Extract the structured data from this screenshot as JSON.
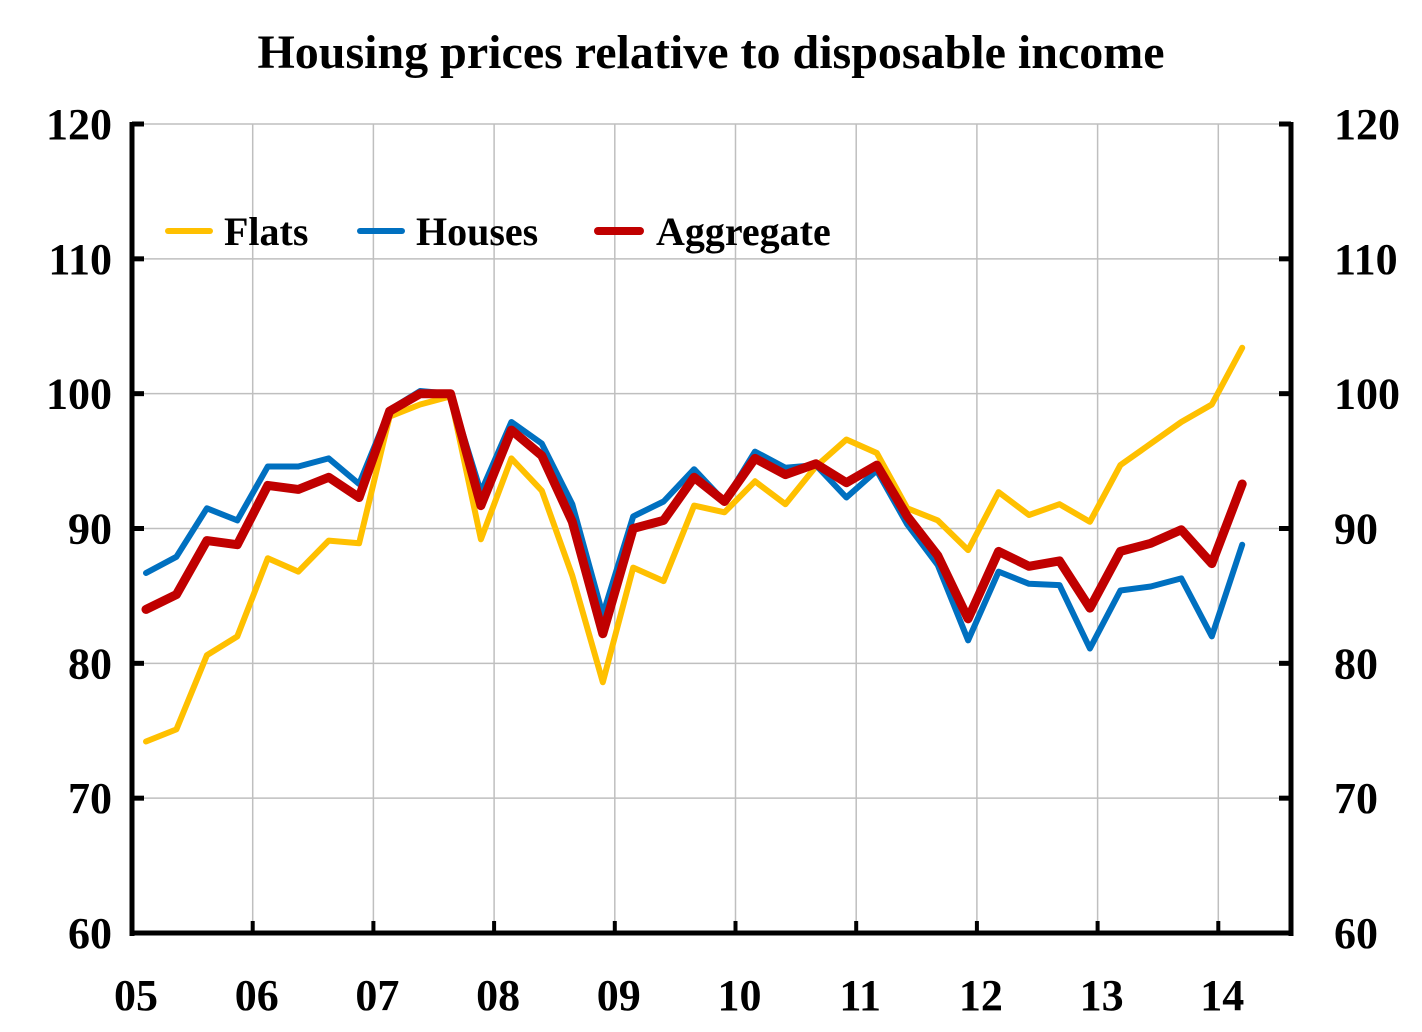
{
  "chart_data": {
    "type": "line",
    "title": "Housing prices relative to disposable income",
    "xlabel": "",
    "ylabel": "",
    "ylim": [
      60,
      120
    ],
    "yticks": [
      "60",
      "70",
      "80",
      "90",
      "100",
      "110",
      "120"
    ],
    "yticks_right": [
      "60",
      "70",
      "80",
      "90",
      "100",
      "110",
      "120"
    ],
    "xtick_labels": [
      "05",
      "06",
      "07",
      "08",
      "09",
      "10",
      "11",
      "12",
      "13",
      "14"
    ],
    "x_unit": "quarter",
    "grid": true,
    "legend": "top-left",
    "series": [
      {
        "name": "Flats",
        "color": "#FFC000",
        "values": [
          74.2,
          75.1,
          80.6,
          82.0,
          87.8,
          86.8,
          89.1,
          88.9,
          98.3,
          99.2,
          99.8,
          89.2,
          95.2,
          92.8,
          86.5,
          78.6,
          87.1,
          86.1,
          91.7,
          91.2,
          93.5,
          91.8,
          94.6,
          96.6,
          95.6,
          91.5,
          90.6,
          88.4,
          92.7,
          91.0,
          91.8,
          90.5,
          94.7,
          96.3,
          97.9,
          99.2,
          103.4
        ]
      },
      {
        "name": "Houses",
        "color": "#0070C0",
        "values": [
          86.7,
          87.9,
          91.5,
          90.6,
          94.6,
          94.6,
          95.2,
          93.3,
          98.8,
          100.2,
          100.0,
          92.7,
          97.9,
          96.3,
          91.8,
          83.6,
          90.9,
          92.0,
          94.4,
          92.0,
          95.7,
          94.5,
          94.7,
          92.3,
          94.3,
          90.3,
          87.3,
          81.7,
          86.8,
          85.9,
          85.8,
          81.1,
          85.4,
          85.7,
          86.3,
          82.0,
          88.8
        ]
      },
      {
        "name": "Aggregate",
        "color": "#C00000",
        "values": [
          84.0,
          85.1,
          89.1,
          88.8,
          93.2,
          92.9,
          93.8,
          92.3,
          98.7,
          100.0,
          100.0,
          91.7,
          97.3,
          95.4,
          90.5,
          82.2,
          90.0,
          90.6,
          93.8,
          92.0,
          95.2,
          94.0,
          94.8,
          93.4,
          94.7,
          90.9,
          88.0,
          83.3,
          88.3,
          87.2,
          87.6,
          84.1,
          88.3,
          88.9,
          89.9,
          87.4,
          93.3
        ]
      }
    ]
  }
}
